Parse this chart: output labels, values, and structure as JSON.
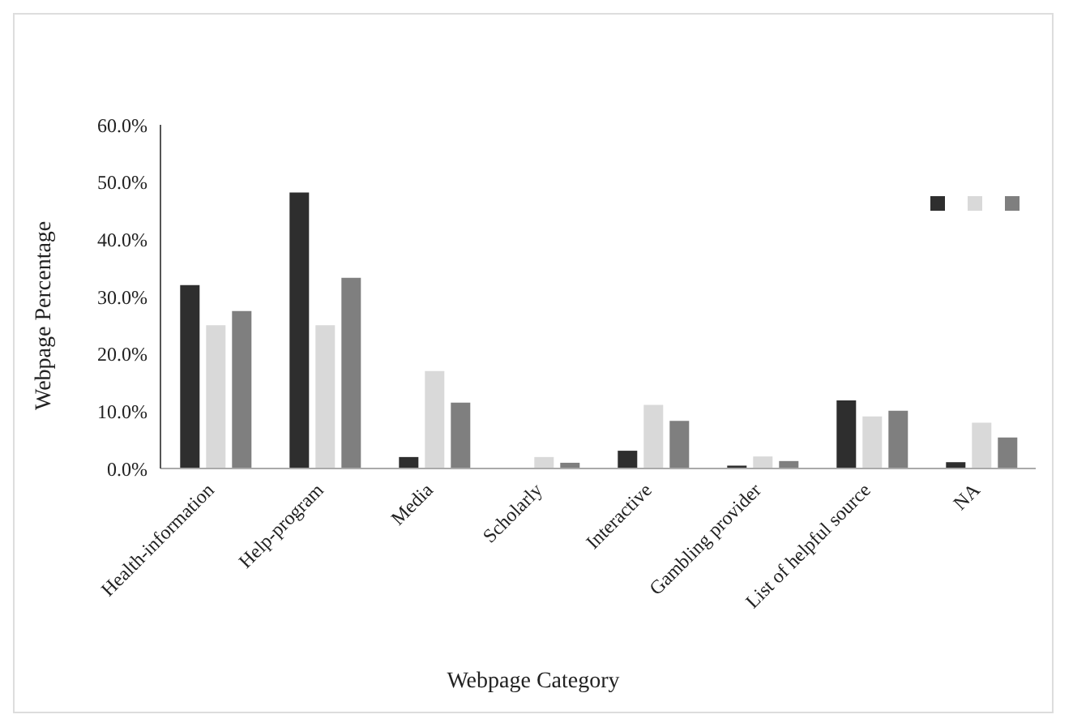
{
  "chart_data": {
    "type": "bar",
    "xlabel": "Webpage Category",
    "ylabel": "Webpage Percentage",
    "categories": [
      "Health-information",
      "Help-program",
      "Media",
      "Scholarly",
      "Interactive",
      "Gambling provider",
      "List of helpful source",
      "NA"
    ],
    "series": [
      {
        "color": "#2e2e2e",
        "values": [
          32.0,
          48.2,
          2.0,
          0,
          3.1,
          0.5,
          11.9,
          1.1
        ]
      },
      {
        "color": "#d9d9d9",
        "values": [
          25.0,
          25.0,
          17.0,
          2.0,
          11.1,
          2.1,
          9.1,
          8.0
        ]
      },
      {
        "color": "#7f7f7f",
        "values": [
          27.5,
          33.3,
          11.5,
          1.0,
          8.3,
          1.3,
          10.1,
          5.4
        ]
      }
    ],
    "ylim": [
      0,
      60
    ],
    "yticks": [
      {
        "value": 0,
        "label": "0.0%"
      },
      {
        "value": 10,
        "label": "10.0%"
      },
      {
        "value": 20,
        "label": "20.0%"
      },
      {
        "value": 30,
        "label": "30.0%"
      },
      {
        "value": 40,
        "label": "40.0%"
      },
      {
        "value": 50,
        "label": "50.0%"
      },
      {
        "value": 60,
        "label": "60.0%"
      }
    ],
    "grid": false
  }
}
